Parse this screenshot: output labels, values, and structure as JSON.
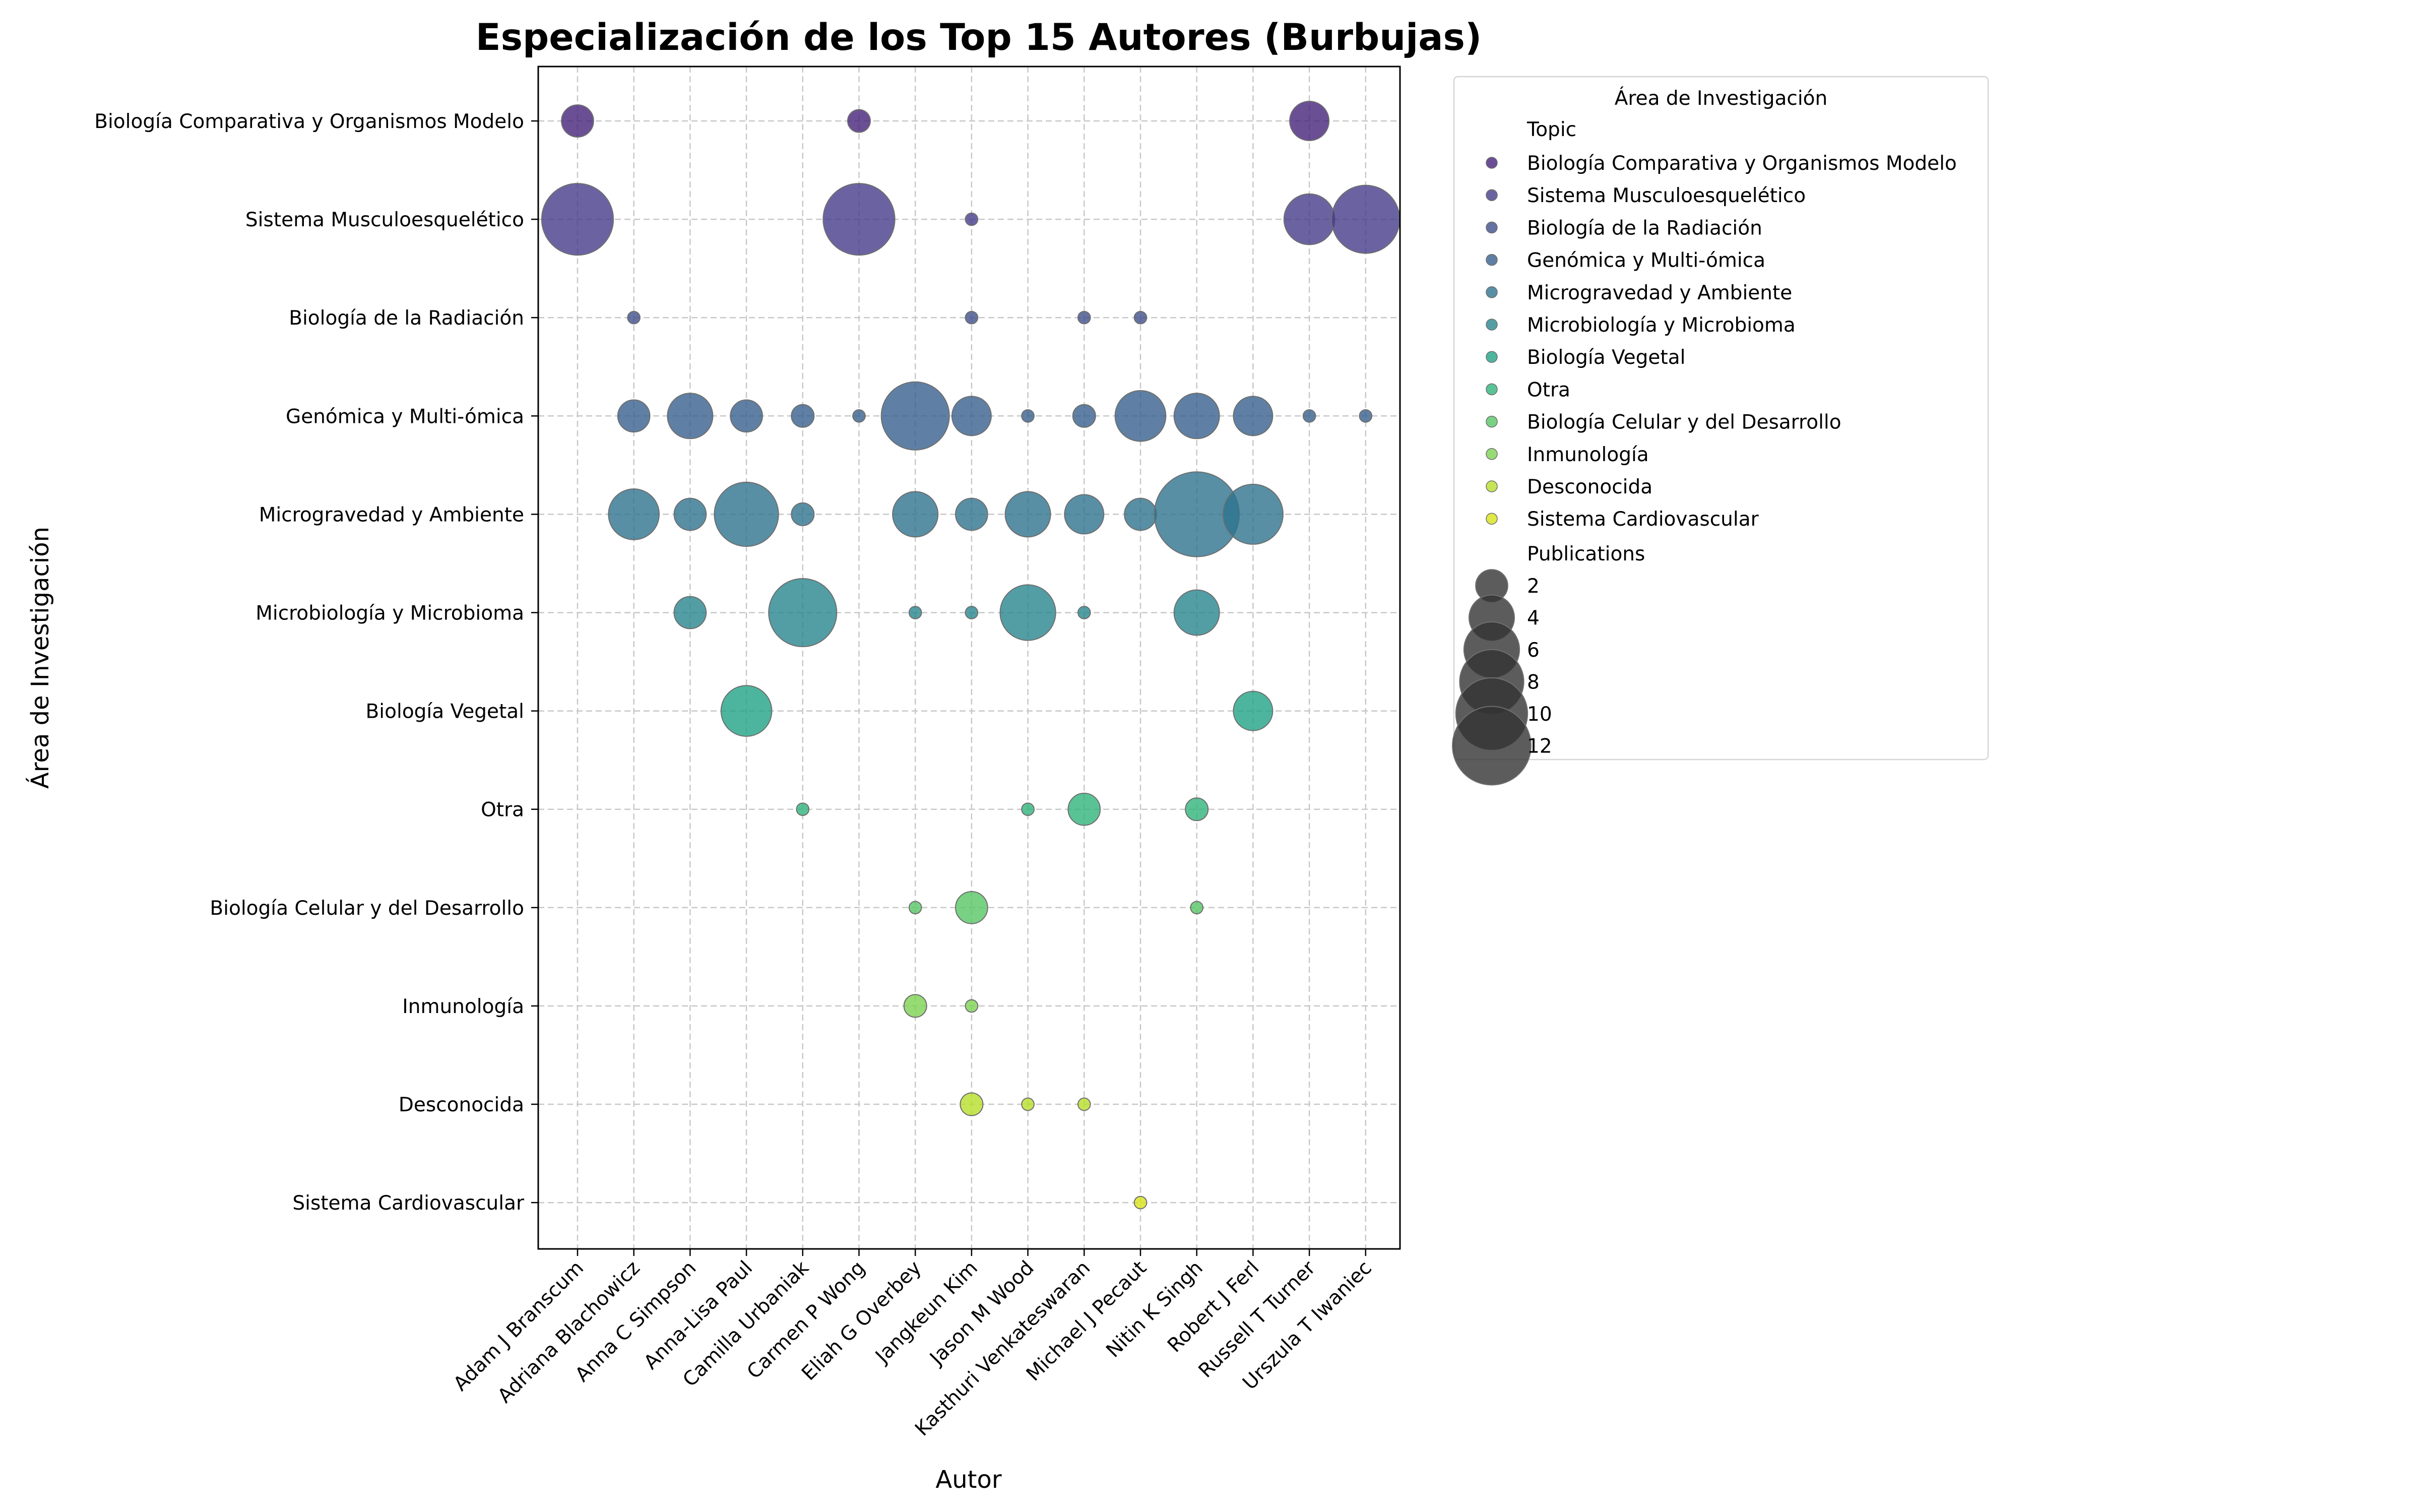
{
  "chart_data": {
    "type": "scatter",
    "title": "Especialización de los Top 15 Autores (Burbujas)",
    "xlabel": "Autor",
    "ylabel": "Área de Investigación",
    "grid": true,
    "legend_placement": "outside-right",
    "authors": [
      "Adam J Branscum",
      "Adriana Blachowicz",
      "Anna C Simpson",
      "Anna-Lisa Paul",
      "Camilla Urbaniak",
      "Carmen P Wong",
      "Eliah G Overbey",
      "Jangkeun Kim",
      "Jason M Wood",
      "Kasthuri Venkateswaran",
      "Michael J Pecaut",
      "Nitin K Singh",
      "Robert J Ferl",
      "Russell T Turner",
      "Urszula T Iwaniec"
    ],
    "topics": [
      "Biología Comparativa y Organismos Modelo",
      "Sistema Musculoesquelético",
      "Biología de la Radiación",
      "Genómica y Multi-ómica",
      "Microgravedad y Ambiente",
      "Microbiología y Microbioma",
      "Biología Vegetal",
      "Otra",
      "Biología Celular y del Desarrollo",
      "Inmunología",
      "Desconocida",
      "Sistema Cardiovascular"
    ],
    "topic_colors": [
      "#46237a",
      "#463c8a",
      "#3f4f8b",
      "#37608d",
      "#2e738e",
      "#28868e",
      "#21a386",
      "#2fb47c",
      "#58c565",
      "#7dd251",
      "#b8de29",
      "#d8e219"
    ],
    "points": [
      {
        "author": "Adam J Branscum",
        "topic": "Biología Comparativa y Organismos Modelo",
        "publications": 2
      },
      {
        "author": "Adam J Branscum",
        "topic": "Sistema Musculoesquelético",
        "publications": 10
      },
      {
        "author": "Carmen P Wong",
        "topic": "Biología Comparativa y Organismos Modelo",
        "publications": 1
      },
      {
        "author": "Carmen P Wong",
        "topic": "Sistema Musculoesquelético",
        "publications": 10
      },
      {
        "author": "Russell T Turner",
        "topic": "Biología Comparativa y Organismos Modelo",
        "publications": 3
      },
      {
        "author": "Russell T Turner",
        "topic": "Sistema Musculoesquelético",
        "publications": 5
      },
      {
        "author": "Russell T Turner",
        "topic": "Genómica y Multi-ómica",
        "publications": 0.3
      },
      {
        "author": "Urszula T Iwaniec",
        "topic": "Sistema Musculoesquelético",
        "publications": 9
      },
      {
        "author": "Urszula T Iwaniec",
        "topic": "Genómica y Multi-ómica",
        "publications": 0.3
      },
      {
        "author": "Jangkeun Kim",
        "topic": "Sistema Musculoesquelético",
        "publications": 0.3
      },
      {
        "author": "Jangkeun Kim",
        "topic": "Biología de la Radiación",
        "publications": 0.3
      },
      {
        "author": "Jangkeun Kim",
        "topic": "Genómica y Multi-ómica",
        "publications": 3
      },
      {
        "author": "Jangkeun Kim",
        "topic": "Microgravedad y Ambiente",
        "publications": 2
      },
      {
        "author": "Jangkeun Kim",
        "topic": "Microbiología y Microbioma",
        "publications": 0.3
      },
      {
        "author": "Jangkeun Kim",
        "topic": "Biología Celular y del Desarrollo",
        "publications": 2
      },
      {
        "author": "Jangkeun Kim",
        "topic": "Inmunología",
        "publications": 0.3
      },
      {
        "author": "Jangkeun Kim",
        "topic": "Desconocida",
        "publications": 1
      },
      {
        "author": "Adriana Blachowicz",
        "topic": "Biología de la Radiación",
        "publications": 0.3
      },
      {
        "author": "Adriana Blachowicz",
        "topic": "Genómica y Multi-ómica",
        "publications": 2
      },
      {
        "author": "Adriana Blachowicz",
        "topic": "Microgravedad y Ambiente",
        "publications": 5
      },
      {
        "author": "Kasthuri Venkateswaran",
        "topic": "Biología de la Radiación",
        "publications": 0.3
      },
      {
        "author": "Kasthuri Venkateswaran",
        "topic": "Genómica y Multi-ómica",
        "publications": 1
      },
      {
        "author": "Kasthuri Venkateswaran",
        "topic": "Microgravedad y Ambiente",
        "publications": 3
      },
      {
        "author": "Kasthuri Venkateswaran",
        "topic": "Microbiología y Microbioma",
        "publications": 0.3
      },
      {
        "author": "Kasthuri Venkateswaran",
        "topic": "Otra",
        "publications": 2
      },
      {
        "author": "Kasthuri Venkateswaran",
        "topic": "Desconocida",
        "publications": 0.3
      },
      {
        "author": "Michael J Pecaut",
        "topic": "Biología de la Radiación",
        "publications": 0.3
      },
      {
        "author": "Michael J Pecaut",
        "topic": "Genómica y Multi-ómica",
        "publications": 5
      },
      {
        "author": "Michael J Pecaut",
        "topic": "Microgravedad y Ambiente",
        "publications": 2
      },
      {
        "author": "Michael J Pecaut",
        "topic": "Sistema Cardiovascular",
        "publications": 0.3
      },
      {
        "author": "Anna C Simpson",
        "topic": "Genómica y Multi-ómica",
        "publications": 4
      },
      {
        "author": "Anna C Simpson",
        "topic": "Microgravedad y Ambiente",
        "publications": 2
      },
      {
        "author": "Anna C Simpson",
        "topic": "Microbiología y Microbioma",
        "publications": 2
      },
      {
        "author": "Anna-Lisa Paul",
        "topic": "Genómica y Multi-ómica",
        "publications": 2
      },
      {
        "author": "Anna-Lisa Paul",
        "topic": "Microgravedad y Ambiente",
        "publications": 8
      },
      {
        "author": "Anna-Lisa Paul",
        "topic": "Biología Vegetal",
        "publications": 5
      },
      {
        "author": "Camilla Urbaniak",
        "topic": "Genómica y Multi-ómica",
        "publications": 1
      },
      {
        "author": "Camilla Urbaniak",
        "topic": "Microgravedad y Ambiente",
        "publications": 1
      },
      {
        "author": "Camilla Urbaniak",
        "topic": "Microbiología y Microbioma",
        "publications": 9
      },
      {
        "author": "Camilla Urbaniak",
        "topic": "Otra",
        "publications": 0.3
      },
      {
        "author": "Carmen P Wong",
        "topic": "Genómica y Multi-ómica",
        "publications": 0.3
      },
      {
        "author": "Eliah G Overbey",
        "topic": "Genómica y Multi-ómica",
        "publications": 9
      },
      {
        "author": "Eliah G Overbey",
        "topic": "Microgravedad y Ambiente",
        "publications": 4
      },
      {
        "author": "Eliah G Overbey",
        "topic": "Microbiología y Microbioma",
        "publications": 0.3
      },
      {
        "author": "Eliah G Overbey",
        "topic": "Biología Celular y del Desarrollo",
        "publications": 0.3
      },
      {
        "author": "Eliah G Overbey",
        "topic": "Inmunología",
        "publications": 1
      },
      {
        "author": "Jason M Wood",
        "topic": "Genómica y Multi-ómica",
        "publications": 0.3
      },
      {
        "author": "Jason M Wood",
        "topic": "Microgravedad y Ambiente",
        "publications": 4
      },
      {
        "author": "Jason M Wood",
        "topic": "Microbiología y Microbioma",
        "publications": 6
      },
      {
        "author": "Jason M Wood",
        "topic": "Otra",
        "publications": 0.3
      },
      {
        "author": "Jason M Wood",
        "topic": "Desconocida",
        "publications": 0.3
      },
      {
        "author": "Nitin K Singh",
        "topic": "Genómica y Multi-ómica",
        "publications": 4
      },
      {
        "author": "Nitin K Singh",
        "topic": "Microgravedad y Ambiente",
        "publications": 14
      },
      {
        "author": "Nitin K Singh",
        "topic": "Microbiología y Microbioma",
        "publications": 4
      },
      {
        "author": "Nitin K Singh",
        "topic": "Otra",
        "publications": 1
      },
      {
        "author": "Nitin K Singh",
        "topic": "Biología Celular y del Desarrollo",
        "publications": 0.3
      },
      {
        "author": "Robert J Ferl",
        "topic": "Genómica y Multi-ómica",
        "publications": 3
      },
      {
        "author": "Robert J Ferl",
        "topic": "Microgravedad y Ambiente",
        "publications": 7
      },
      {
        "author": "Robert J Ferl",
        "topic": "Biología Vegetal",
        "publications": 3
      }
    ],
    "legend": {
      "title": "Área de Investigación",
      "hue_header": "Topic",
      "size_header": "Publications",
      "size_values": [
        2,
        4,
        6,
        8,
        10,
        12
      ]
    }
  }
}
